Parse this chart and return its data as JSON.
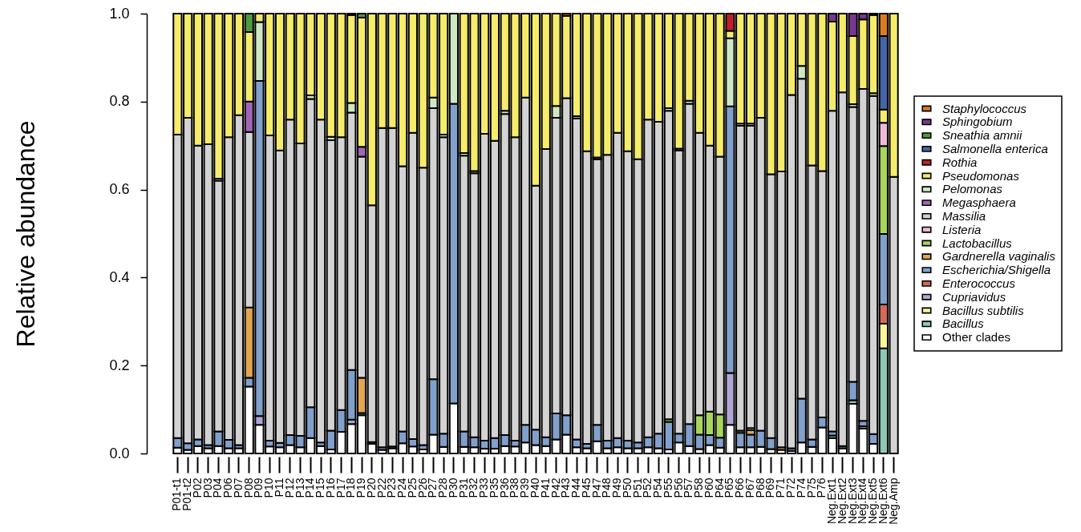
{
  "chart_data": {
    "type": "bar",
    "stacked": true,
    "ylabel": "Relative abundance",
    "ylim": [
      0,
      1
    ],
    "yticks": [
      {
        "value": 0,
        "label": "0.0"
      },
      0.2,
      0.4,
      0.6,
      0.8,
      {
        "value": 1,
        "label": "1.0"
      }
    ],
    "legend": "right",
    "categories": [
      "P01-t1",
      "P01-t2",
      "P02",
      "P03",
      "P04",
      "P06",
      "P07",
      "P08",
      "P09",
      "P10",
      "P11",
      "P12",
      "P13",
      "P14",
      "P15",
      "P16",
      "P17",
      "P18",
      "P19",
      "P20",
      "P22",
      "P23",
      "P24",
      "P25",
      "P26",
      "P27",
      "P28",
      "P30",
      "P31",
      "P32",
      "P33",
      "P35",
      "P36",
      "P38",
      "P39",
      "P40",
      "P41",
      "P42",
      "P43",
      "P44",
      "P45",
      "P47",
      "P48",
      "P49",
      "P50",
      "P51",
      "P52",
      "P54",
      "P55",
      "P56",
      "P57",
      "P58",
      "P60",
      "P64",
      "P65",
      "P66",
      "P67",
      "P68",
      "P69",
      "P71",
      "P72",
      "P74",
      "P75",
      "P76",
      "Neg.Ext1",
      "Neg.Ext2",
      "Neg.Ext3",
      "Neg.Ext4",
      "Neg.Ext5",
      "Neg.Ext6",
      "Neg.Amp"
    ],
    "series": [
      {
        "name": "Other clades",
        "color": "#ffffff",
        "values": [
          0.013,
          0.008,
          0.017,
          0.012,
          0.017,
          0.012,
          0.012,
          0.152,
          0.065,
          0.016,
          0.014,
          0.019,
          0.014,
          0.035,
          0.017,
          0.009,
          0.049,
          0.067,
          0.087,
          0.022,
          0.008,
          0.012,
          0.023,
          0.016,
          0.009,
          0.043,
          0.015,
          0.114,
          0.015,
          0.014,
          0.011,
          0.011,
          0.017,
          0.016,
          0.025,
          0.019,
          0.017,
          0.032,
          0.043,
          0.014,
          0.012,
          0.028,
          0.012,
          0.014,
          0.012,
          0.012,
          0.014,
          0.012,
          0.009,
          0.025,
          0.017,
          0.01,
          0.019,
          0.013,
          0.065,
          0.014,
          0.014,
          0.015,
          0.01,
          0.008,
          0.006,
          0.025,
          0.015,
          0.059,
          0.035,
          0.012,
          0.113,
          0.057,
          0.022,
          0,
          0
        ]
      },
      {
        "name": "Bacillus",
        "color": "#8dc9b3",
        "values": [
          0,
          0,
          0,
          0,
          0,
          0,
          0,
          0,
          0,
          0,
          0,
          0,
          0,
          0,
          0,
          0,
          0,
          0,
          0,
          0,
          0,
          0,
          0,
          0,
          0,
          0,
          0,
          0,
          0,
          0,
          0,
          0,
          0,
          0,
          0,
          0,
          0,
          0,
          0,
          0,
          0,
          0,
          0,
          0,
          0,
          0,
          0,
          0,
          0,
          0,
          0,
          0,
          0,
          0,
          0,
          0,
          0,
          0,
          0,
          0,
          0,
          0,
          0,
          0,
          0.006,
          0,
          0.008,
          0.005,
          0,
          0.239,
          0
        ]
      },
      {
        "name": "Bacillus subtilis",
        "color": "#fbf79c",
        "values": [
          0,
          0,
          0,
          0,
          0,
          0,
          0,
          0,
          0,
          0,
          0,
          0,
          0,
          0,
          0,
          0,
          0,
          0,
          0,
          0,
          0,
          0,
          0,
          0,
          0,
          0,
          0,
          0,
          0,
          0,
          0,
          0,
          0,
          0,
          0,
          0,
          0,
          0,
          0,
          0,
          0,
          0,
          0,
          0,
          0,
          0,
          0,
          0,
          0,
          0,
          0,
          0,
          0,
          0,
          0,
          0,
          0,
          0,
          0,
          0,
          0,
          0,
          0,
          0,
          0,
          0,
          0,
          0,
          0,
          0.056,
          0
        ]
      },
      {
        "name": "Cupriavidus",
        "color": "#b2a6d4",
        "values": [
          0,
          0,
          0,
          0,
          0,
          0,
          0,
          0,
          0.02,
          0,
          0,
          0,
          0,
          0,
          0,
          0,
          0,
          0.01,
          0,
          0,
          0,
          0,
          0,
          0,
          0,
          0,
          0,
          0,
          0,
          0,
          0,
          0,
          0,
          0,
          0,
          0,
          0,
          0,
          0,
          0,
          0,
          0,
          0,
          0,
          0,
          0,
          0,
          0,
          0,
          0,
          0,
          0,
          0,
          0,
          0.118,
          0,
          0,
          0,
          0,
          0,
          0,
          0,
          0,
          0,
          0,
          0,
          0,
          0,
          0,
          0,
          0
        ]
      },
      {
        "name": "Enterococcus",
        "color": "#d7685a",
        "values": [
          0,
          0,
          0,
          0,
          0,
          0,
          0,
          0,
          0,
          0,
          0,
          0,
          0,
          0,
          0,
          0,
          0,
          0,
          0,
          0,
          0,
          0,
          0,
          0,
          0,
          0,
          0,
          0,
          0,
          0,
          0,
          0,
          0,
          0,
          0,
          0,
          0,
          0,
          0,
          0,
          0,
          0,
          0,
          0,
          0,
          0,
          0,
          0,
          0,
          0,
          0,
          0,
          0,
          0,
          0,
          0,
          0,
          0,
          0,
          0,
          0,
          0,
          0,
          0,
          0,
          0,
          0,
          0,
          0,
          0.044,
          0
        ]
      },
      {
        "name": "Escherichia/Shigella",
        "color": "#81a0cc",
        "values": [
          0.022,
          0.015,
          0.015,
          0.007,
          0.033,
          0.019,
          0.007,
          0.02,
          0.762,
          0.013,
          0.01,
          0.023,
          0.026,
          0.07,
          0.008,
          0.043,
          0.05,
          0.113,
          0.005,
          0.004,
          0.006,
          0.004,
          0.027,
          0.017,
          0.01,
          0.126,
          0.03,
          0.681,
          0.035,
          0.023,
          0.018,
          0.024,
          0.025,
          0.013,
          0.04,
          0.035,
          0.02,
          0.059,
          0.044,
          0.018,
          0.01,
          0.037,
          0.017,
          0.021,
          0.017,
          0.013,
          0.023,
          0.033,
          0.063,
          0.02,
          0.05,
          0.033,
          0.023,
          0.023,
          0.606,
          0.033,
          0.029,
          0.037,
          0.025,
          0,
          0.006,
          0.1,
          0.017,
          0.023,
          0.009,
          0.005,
          0.042,
          0.012,
          0.022,
          0.16,
          0
        ]
      },
      {
        "name": "Gardnerella vaginalis",
        "color": "#e2a550",
        "values": [
          0,
          0,
          0,
          0,
          0,
          0,
          0,
          0.16,
          0,
          0,
          0,
          0,
          0,
          0,
          0,
          0,
          0,
          0,
          0.08,
          0,
          0,
          0,
          0,
          0,
          0,
          0,
          0,
          0,
          0,
          0,
          0,
          0,
          0,
          0,
          0,
          0,
          0,
          0,
          0,
          0,
          0,
          0,
          0,
          0,
          0,
          0,
          0,
          0,
          0,
          0,
          0,
          0,
          0,
          0,
          0,
          0,
          0.01,
          0,
          0,
          0.006,
          0,
          0,
          0,
          0,
          0,
          0,
          0,
          0,
          0,
          0,
          0
        ]
      },
      {
        "name": "Lactobacillus",
        "color": "#a8d65c",
        "values": [
          0,
          0,
          0,
          0,
          0,
          0,
          0,
          0,
          0,
          0,
          0,
          0,
          0,
          0,
          0,
          0,
          0,
          0,
          0,
          0,
          0,
          0,
          0,
          0,
          0,
          0,
          0,
          0,
          0,
          0,
          0,
          0,
          0,
          0,
          0,
          0,
          0,
          0,
          0,
          0,
          0,
          0,
          0,
          0,
          0,
          0,
          0,
          0,
          0.006,
          0,
          0,
          0.044,
          0.053,
          0.053,
          0,
          0.005,
          0.005,
          0,
          0,
          0,
          0,
          0,
          0,
          0,
          0,
          0,
          0,
          0,
          0,
          0.2,
          0
        ]
      },
      {
        "name": "Listeria",
        "color": "#f1bad8",
        "values": [
          0,
          0,
          0,
          0,
          0,
          0,
          0,
          0,
          0,
          0,
          0,
          0,
          0,
          0,
          0,
          0,
          0,
          0,
          0,
          0,
          0,
          0,
          0,
          0,
          0,
          0,
          0,
          0,
          0,
          0,
          0,
          0,
          0,
          0,
          0,
          0,
          0,
          0,
          0,
          0,
          0,
          0,
          0,
          0,
          0,
          0,
          0,
          0,
          0,
          0,
          0,
          0,
          0,
          0,
          0,
          0,
          0,
          0,
          0,
          0,
          0,
          0,
          0,
          0,
          0,
          0,
          0,
          0,
          0,
          0.053,
          0
        ]
      },
      {
        "name": "Massilia",
        "color": "#d3d3d3",
        "values": [
          0.69,
          0.74,
          0.668,
          0.684,
          0.57,
          0.688,
          0.75,
          0.399,
          0,
          0.694,
          0.665,
          0.717,
          0.665,
          0.701,
          0.734,
          0.66,
          0.62,
          0.585,
          0.503,
          0.538,
          0.726,
          0.724,
          0.603,
          0.696,
          0.631,
          0.616,
          0.674,
          0,
          0.627,
          0.6,
          0.698,
          0.676,
          0.73,
          0.69,
          0.744,
          0.555,
          0.655,
          0.672,
          0.721,
          0.73,
          0.665,
          0.604,
          0.65,
          0.694,
          0.658,
          0.644,
          0.722,
          0.709,
          0.701,
          0.644,
          0.728,
          0.642,
          0.605,
          0.586,
          0,
          0.693,
          0.687,
          0.711,
          0.6,
          0.627,
          0.803,
          0.727,
          0.623,
          0.56,
          0.729,
          0.804,
          0.625,
          0.755,
          0.769,
          0,
          0.629
        ]
      },
      {
        "name": "Megasphaera",
        "color": "#a266b6",
        "values": [
          0,
          0,
          0,
          0,
          0,
          0,
          0,
          0.069,
          0,
          0,
          0,
          0,
          0,
          0,
          0,
          0,
          0,
          0,
          0.022,
          0,
          0,
          0,
          0,
          0,
          0,
          0,
          0,
          0,
          0,
          0,
          0,
          0,
          0,
          0,
          0,
          0,
          0,
          0,
          0,
          0,
          0,
          0,
          0,
          0,
          0,
          0,
          0,
          0,
          0,
          0,
          0,
          0,
          0,
          0,
          0,
          0,
          0,
          0,
          0,
          0,
          0,
          0,
          0,
          0,
          0,
          0,
          0,
          0,
          0,
          0,
          0
        ]
      },
      {
        "name": "Pelomonas",
        "color": "#cfe8c4",
        "values": [
          0,
          0,
          0,
          0,
          0.005,
          0,
          0,
          0,
          0.134,
          0,
          0,
          0,
          0,
          0.008,
          0,
          0.008,
          0,
          0.022,
          0,
          0,
          0,
          0,
          0,
          0,
          0,
          0.024,
          0.006,
          0.205,
          0.006,
          0.005,
          0,
          0,
          0.007,
          0,
          0,
          0,
          0,
          0.027,
          0,
          0.005,
          0,
          0.004,
          0,
          0,
          0,
          0,
          0,
          0,
          0.006,
          0.004,
          0.007,
          0,
          0,
          0,
          0.155,
          0.005,
          0.005,
          0,
          0,
          0,
          0,
          0.029,
          0,
          0,
          0,
          0,
          0.006,
          0,
          0.006,
          0,
          0
        ]
      },
      {
        "name": "Pseudomonas",
        "color": "#f6ec6b",
        "values": [
          0.275,
          0.237,
          0.3,
          0.297,
          0.375,
          0.281,
          0.231,
          0.158,
          0.019,
          0.277,
          0.311,
          0.241,
          0.295,
          0.186,
          0.241,
          0.28,
          0.281,
          0.2,
          0.294,
          0.436,
          0.26,
          0.26,
          0.347,
          0.271,
          0.35,
          0.191,
          0.275,
          0,
          0.317,
          0.358,
          0.273,
          0.289,
          0.221,
          0.281,
          0.191,
          0.391,
          0.308,
          0.21,
          0.187,
          0.233,
          0.313,
          0.327,
          0.321,
          0.271,
          0.313,
          0.331,
          0.241,
          0.246,
          0.215,
          0.307,
          0.198,
          0.271,
          0.3,
          0.325,
          0.017,
          0.25,
          0.25,
          0.237,
          0.365,
          0.359,
          0.185,
          0.119,
          0.345,
          0.358,
          0.203,
          0.179,
          0.155,
          0.158,
          0.178,
          0.03,
          0.371
        ]
      },
      {
        "name": "Rothia",
        "color": "#bf1f2a",
        "values": [
          0,
          0,
          0,
          0,
          0,
          0,
          0,
          0,
          0,
          0,
          0,
          0,
          0,
          0,
          0,
          0,
          0,
          0,
          0,
          0,
          0,
          0,
          0,
          0,
          0,
          0,
          0,
          0,
          0,
          0,
          0,
          0,
          0,
          0,
          0,
          0,
          0,
          0,
          0,
          0,
          0,
          0,
          0,
          0,
          0,
          0,
          0,
          0,
          0,
          0,
          0,
          0,
          0,
          0,
          0.039,
          0,
          0,
          0,
          0,
          0,
          0,
          0,
          0,
          0,
          0,
          0,
          0,
          0,
          0,
          0,
          0
        ]
      },
      {
        "name": "Salmonella enterica",
        "color": "#4565aa",
        "values": [
          0,
          0,
          0,
          0,
          0,
          0,
          0,
          0,
          0,
          0,
          0,
          0,
          0,
          0,
          0,
          0,
          0,
          0,
          0,
          0,
          0,
          0,
          0,
          0,
          0,
          0,
          0,
          0,
          0,
          0,
          0,
          0,
          0,
          0,
          0,
          0,
          0,
          0,
          0,
          0,
          0,
          0,
          0,
          0,
          0,
          0,
          0,
          0,
          0,
          0,
          0,
          0,
          0,
          0,
          0,
          0,
          0,
          0,
          0,
          0,
          0,
          0,
          0,
          0,
          0,
          0,
          0,
          0,
          0,
          0.167,
          0
        ]
      },
      {
        "name": "Sneathia amnii",
        "color": "#4e9b3c",
        "values": [
          0,
          0,
          0,
          0,
          0,
          0,
          0,
          0.042,
          0,
          0,
          0,
          0,
          0,
          0,
          0,
          0,
          0,
          0,
          0.009,
          0,
          0,
          0,
          0,
          0,
          0,
          0,
          0,
          0,
          0,
          0,
          0,
          0,
          0,
          0,
          0,
          0,
          0,
          0,
          0,
          0,
          0,
          0,
          0,
          0,
          0,
          0,
          0,
          0,
          0,
          0,
          0,
          0,
          0,
          0,
          0,
          0,
          0,
          0,
          0,
          0,
          0,
          0,
          0,
          0,
          0,
          0,
          0,
          0,
          0,
          0,
          0
        ]
      },
      {
        "name": "Sphingobium",
        "color": "#7a3692",
        "values": [
          0,
          0,
          0,
          0,
          0,
          0,
          0,
          0,
          0,
          0,
          0,
          0,
          0,
          0,
          0,
          0,
          0,
          0.003,
          0,
          0,
          0,
          0,
          0,
          0,
          0,
          0,
          0,
          0,
          0,
          0,
          0,
          0,
          0,
          0,
          0,
          0,
          0,
          0,
          0,
          0,
          0,
          0,
          0,
          0,
          0,
          0,
          0,
          0,
          0,
          0,
          0,
          0,
          0,
          0,
          0,
          0,
          0,
          0,
          0,
          0,
          0,
          0,
          0,
          0,
          0.018,
          0,
          0.051,
          0.013,
          0.003,
          0,
          0
        ]
      },
      {
        "name": "Staphylococcus",
        "color": "#de7a22",
        "values": [
          0,
          0,
          0,
          0,
          0,
          0,
          0,
          0,
          0,
          0,
          0,
          0,
          0,
          0,
          0,
          0,
          0,
          0,
          0,
          0,
          0,
          0,
          0,
          0,
          0,
          0,
          0,
          0,
          0,
          0,
          0,
          0,
          0,
          0,
          0,
          0,
          0,
          0,
          0.005,
          0,
          0,
          0,
          0,
          0,
          0,
          0,
          0,
          0,
          0,
          0,
          0,
          0,
          0,
          0,
          0,
          0,
          0,
          0,
          0,
          0,
          0,
          0,
          0,
          0,
          0,
          0,
          0,
          0,
          0,
          0.051,
          0
        ]
      }
    ]
  }
}
